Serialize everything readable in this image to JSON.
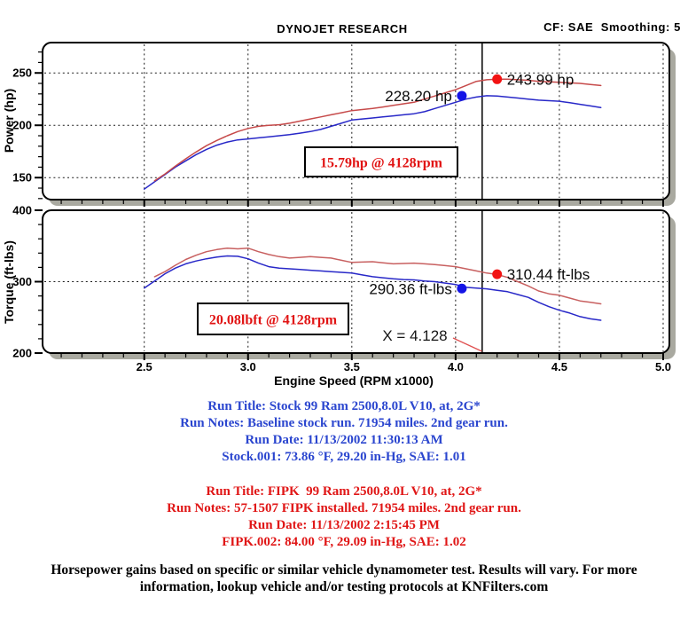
{
  "header": {
    "title": "DYNOJET RESEARCH",
    "settings": "CF: SAE  Smoothing: 5"
  },
  "theme": {
    "accent_red": "#e11414",
    "accent_blue": "#2b46cf",
    "stock_curve": "#2828c8",
    "fipk_curve": "#c64a4a",
    "fipk_torque_curve": "#c86060",
    "marker_red": "#f21212",
    "marker_blue": "#1414e6",
    "box_shadow": "#a9a9a0"
  },
  "cursor": {
    "x": 4.128,
    "label": "X = 4.128"
  },
  "chart_data": [
    {
      "type": "line",
      "title": "Power vs Engine Speed",
      "ylabel": "Power (hp)",
      "xlabel": "",
      "ylim": [
        129,
        279
      ],
      "yticks": [
        150,
        200,
        250
      ],
      "yminor_step": 10,
      "xlim": [
        2.01,
        5.03
      ],
      "xticks": [
        2.5,
        3.0,
        3.5,
        4.0,
        4.5,
        5.0
      ],
      "xminor_step": 0.1,
      "grid": "dotted",
      "annotation": "15.79hp @ 4128rpm",
      "series": [
        {
          "name": "Stock",
          "color": "#2828c8",
          "points": [
            [
              2.5,
              139
            ],
            [
              2.55,
              146
            ],
            [
              2.6,
              153
            ],
            [
              2.65,
              160
            ],
            [
              2.7,
              166
            ],
            [
              2.75,
              172
            ],
            [
              2.8,
              177
            ],
            [
              2.85,
              181
            ],
            [
              2.9,
              184
            ],
            [
              2.95,
              186
            ],
            [
              3.0,
              187
            ],
            [
              3.05,
              188
            ],
            [
              3.1,
              189
            ],
            [
              3.15,
              190
            ],
            [
              3.2,
              191
            ],
            [
              3.25,
              192.5
            ],
            [
              3.3,
              194
            ],
            [
              3.35,
              196
            ],
            [
              3.4,
              199
            ],
            [
              3.45,
              202
            ],
            [
              3.5,
              205
            ],
            [
              3.55,
              206
            ],
            [
              3.6,
              207
            ],
            [
              3.65,
              208
            ],
            [
              3.7,
              209
            ],
            [
              3.75,
              210
            ],
            [
              3.8,
              211
            ],
            [
              3.85,
              213
            ],
            [
              3.9,
              216
            ],
            [
              3.95,
              219
            ],
            [
              4.0,
              222
            ],
            [
              4.05,
              225
            ],
            [
              4.1,
              227
            ],
            [
              4.15,
              228.2
            ],
            [
              4.2,
              228
            ],
            [
              4.25,
              227
            ],
            [
              4.3,
              226
            ],
            [
              4.35,
              225
            ],
            [
              4.4,
              224
            ],
            [
              4.45,
              223.5
            ],
            [
              4.5,
              223
            ],
            [
              4.55,
              221.5
            ],
            [
              4.6,
              220
            ],
            [
              4.65,
              218.5
            ],
            [
              4.7,
              217
            ]
          ]
        },
        {
          "name": "FIPK",
          "color": "#c64a4a",
          "points": [
            [
              2.55,
              147
            ],
            [
              2.6,
              153.5
            ],
            [
              2.65,
              161
            ],
            [
              2.7,
              168
            ],
            [
              2.75,
              174.5
            ],
            [
              2.8,
              180.5
            ],
            [
              2.85,
              185.5
            ],
            [
              2.9,
              190
            ],
            [
              2.95,
              194
            ],
            [
              3.0,
              197
            ],
            [
              3.05,
              199
            ],
            [
              3.1,
              200
            ],
            [
              3.15,
              200.5
            ],
            [
              3.2,
              202
            ],
            [
              3.25,
              204
            ],
            [
              3.3,
              206
            ],
            [
              3.35,
              208
            ],
            [
              3.4,
              210
            ],
            [
              3.45,
              212
            ],
            [
              3.5,
              214
            ],
            [
              3.55,
              215
            ],
            [
              3.6,
              216
            ],
            [
              3.65,
              217.5
            ],
            [
              3.7,
              219
            ],
            [
              3.75,
              220.5
            ],
            [
              3.8,
              222
            ],
            [
              3.85,
              225
            ],
            [
              3.9,
              228
            ],
            [
              3.95,
              231
            ],
            [
              4.0,
              234
            ],
            [
              4.05,
              238
            ],
            [
              4.1,
              242
            ],
            [
              4.15,
              243.5
            ],
            [
              4.2,
              244
            ],
            [
              4.25,
              244
            ],
            [
              4.3,
              243.5
            ],
            [
              4.35,
              243
            ],
            [
              4.4,
              242
            ],
            [
              4.45,
              241.5
            ],
            [
              4.5,
              241
            ],
            [
              4.55,
              240.5
            ],
            [
              4.6,
              240
            ],
            [
              4.65,
              239
            ],
            [
              4.7,
              238
            ]
          ]
        }
      ],
      "markers": [
        {
          "series": "FIPK",
          "label": "243.99 hp",
          "value": 243.99,
          "at_x": 4.2,
          "color": "#f21212",
          "side": "right"
        },
        {
          "series": "Stock",
          "label": "228.20 hp",
          "value": 228.2,
          "at_x": 4.03,
          "color": "#1414e6",
          "side": "left"
        }
      ]
    },
    {
      "type": "line",
      "title": "Torque vs Engine Speed",
      "ylabel": "Torque (ft-lbs)",
      "xlabel": "Engine Speed (RPM x1000)",
      "ylim": [
        200,
        400
      ],
      "yticks": [
        200,
        300,
        400
      ],
      "yminor_step": 20,
      "xlim": [
        2.01,
        5.03
      ],
      "xticks": [
        2.5,
        3.0,
        3.5,
        4.0,
        4.5,
        5.0
      ],
      "xminor_step": 0.1,
      "grid": "dotted",
      "annotation": "20.08lbft @ 4128rpm",
      "series": [
        {
          "name": "Stock",
          "color": "#2828c8",
          "points": [
            [
              2.5,
              291
            ],
            [
              2.55,
              301
            ],
            [
              2.6,
              311
            ],
            [
              2.65,
              319
            ],
            [
              2.7,
              325
            ],
            [
              2.75,
              329
            ],
            [
              2.8,
              332
            ],
            [
              2.85,
              334.5
            ],
            [
              2.9,
              336
            ],
            [
              2.95,
              335.5
            ],
            [
              3.0,
              332
            ],
            [
              3.05,
              326
            ],
            [
              3.1,
              321
            ],
            [
              3.15,
              319
            ],
            [
              3.2,
              318
            ],
            [
              3.25,
              317
            ],
            [
              3.3,
              316
            ],
            [
              3.35,
              315
            ],
            [
              3.4,
              314
            ],
            [
              3.45,
              313
            ],
            [
              3.5,
              312
            ],
            [
              3.55,
              309.5
            ],
            [
              3.6,
              307
            ],
            [
              3.65,
              305.5
            ],
            [
              3.7,
              304
            ],
            [
              3.75,
              303
            ],
            [
              3.8,
              302.5
            ],
            [
              3.85,
              301
            ],
            [
              3.9,
              300
            ],
            [
              3.95,
              298
            ],
            [
              4.0,
              296
            ],
            [
              4.05,
              292
            ],
            [
              4.1,
              291
            ],
            [
              4.15,
              290
            ],
            [
              4.2,
              288
            ],
            [
              4.25,
              286
            ],
            [
              4.3,
              282
            ],
            [
              4.35,
              278
            ],
            [
              4.4,
              271
            ],
            [
              4.45,
              265
            ],
            [
              4.5,
              260
            ],
            [
              4.55,
              256
            ],
            [
              4.6,
              251
            ],
            [
              4.65,
              248
            ],
            [
              4.7,
              246
            ]
          ]
        },
        {
          "name": "FIPK",
          "color": "#c86060",
          "points": [
            [
              2.55,
              307
            ],
            [
              2.6,
              314
            ],
            [
              2.65,
              323
            ],
            [
              2.7,
              331
            ],
            [
              2.75,
              337
            ],
            [
              2.8,
              342
            ],
            [
              2.85,
              345
            ],
            [
              2.9,
              347
            ],
            [
              2.95,
              346
            ],
            [
              3.0,
              347
            ],
            [
              3.05,
              342
            ],
            [
              3.1,
              338
            ],
            [
              3.15,
              335
            ],
            [
              3.2,
              333
            ],
            [
              3.25,
              334
            ],
            [
              3.3,
              335
            ],
            [
              3.35,
              334
            ],
            [
              3.4,
              333
            ],
            [
              3.45,
              330
            ],
            [
              3.5,
              327
            ],
            [
              3.55,
              327.5
            ],
            [
              3.6,
              328
            ],
            [
              3.65,
              326.5
            ],
            [
              3.7,
              325
            ],
            [
              3.75,
              325.5
            ],
            [
              3.8,
              326
            ],
            [
              3.85,
              325
            ],
            [
              3.9,
              324
            ],
            [
              3.95,
              322.5
            ],
            [
              4.0,
              321
            ],
            [
              4.05,
              318
            ],
            [
              4.1,
              315
            ],
            [
              4.15,
              312
            ],
            [
              4.2,
              310
            ],
            [
              4.25,
              306
            ],
            [
              4.3,
              300
            ],
            [
              4.35,
              294
            ],
            [
              4.4,
              287
            ],
            [
              4.45,
              283
            ],
            [
              4.5,
              281
            ],
            [
              4.55,
              277
            ],
            [
              4.6,
              273
            ],
            [
              4.65,
              271
            ],
            [
              4.7,
              269
            ]
          ]
        }
      ],
      "markers": [
        {
          "series": "FIPK",
          "label": "310.44 ft-lbs",
          "value": 310.44,
          "at_x": 4.2,
          "color": "#f21212",
          "side": "right"
        },
        {
          "series": "Stock",
          "label": "290.36 ft-lbs",
          "value": 290.36,
          "at_x": 4.03,
          "color": "#1414e6",
          "side": "left"
        }
      ]
    }
  ],
  "runs": [
    {
      "name": "Stock",
      "color": "#2b46cf",
      "lines": [
        "Run Title: Stock 99 Ram 2500,8.0L V10, at, 2G*",
        "Run Notes: Baseline stock run. 71954 miles. 2nd gear run.",
        "Run Date: 11/13/2002 11:30:13 AM",
        "Stock.001: 73.86 °F, 29.20 in-Hg, SAE: 1.01"
      ]
    },
    {
      "name": "FIPK",
      "color": "#e01616",
      "lines": [
        "Run Title: FIPK  99 Ram 2500,8.0L V10, at, 2G*",
        "Run Notes: 57-1507 FIPK installed. 71954 miles. 2nd gear run.",
        "Run Date: 11/13/2002 2:15:45 PM",
        "FIPK.002: 84.00 °F, 29.09 in-Hg, SAE: 1.02"
      ]
    }
  ],
  "footer": {
    "line1": "Horsepower gains based on specific or similar vehicle dynamometer test. Results will vary. For more",
    "line2": "information, lookup vehicle and/or testing protocols at KNFilters.com"
  }
}
